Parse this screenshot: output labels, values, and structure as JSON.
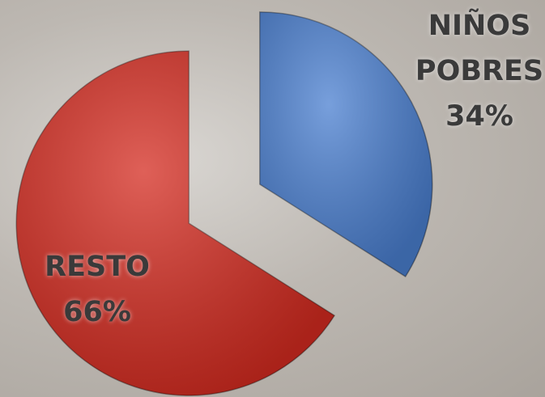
{
  "chart_data": {
    "type": "pie",
    "categories": [
      "NIÑOS POBRES",
      "RESTO"
    ],
    "values": [
      34,
      66
    ],
    "value_labels": [
      "34%",
      "66%"
    ],
    "colors": [
      "#4a7fd0",
      "#d42b20"
    ]
  }
}
